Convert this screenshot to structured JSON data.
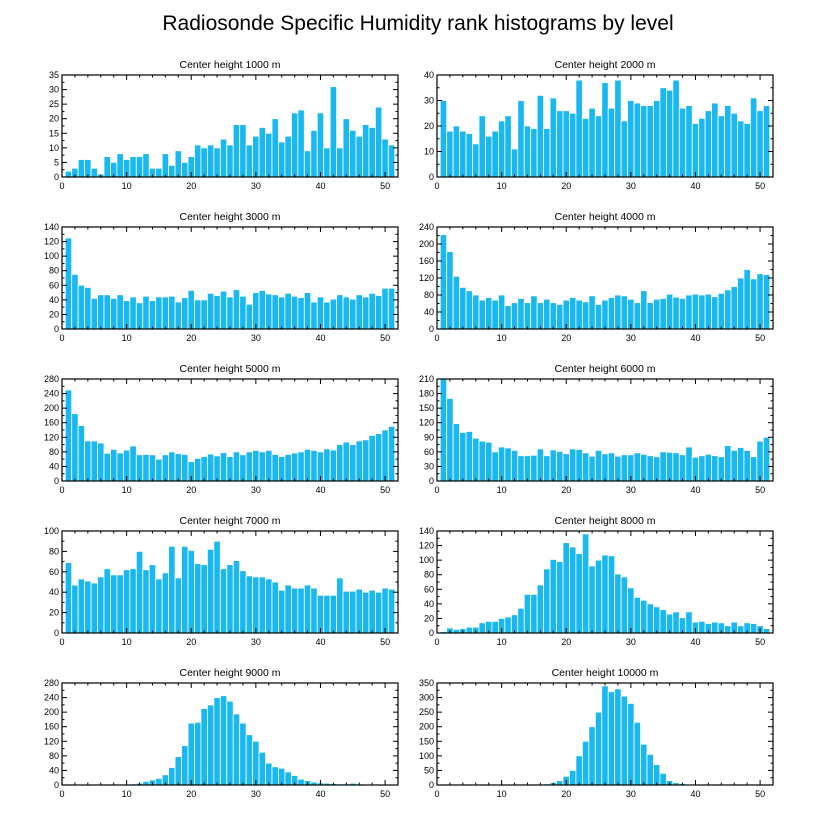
{
  "title": "Radiosonde Specific Humidity rank histograms by level",
  "colors": {
    "bar": "#1ab8f0",
    "frame": "#000000"
  },
  "chart_data": [
    {
      "type": "bar",
      "title": "Center height 1000 m",
      "xlim": [
        0,
        52
      ],
      "ylim": [
        0,
        35
      ],
      "xticks": [
        0,
        10,
        20,
        30,
        40,
        50
      ],
      "yticks": [
        0,
        5,
        10,
        15,
        20,
        25,
        30,
        35
      ],
      "values": [
        2,
        3,
        6,
        6,
        3,
        1,
        7,
        5,
        8,
        6,
        7,
        7,
        8,
        3,
        3,
        8,
        4,
        9,
        5,
        7,
        11,
        10,
        11,
        10,
        13,
        11,
        18,
        18,
        11,
        14,
        17,
        15,
        20,
        12,
        14,
        22,
        23,
        9,
        16,
        22,
        10,
        31,
        10,
        20,
        16,
        14,
        18,
        17,
        24,
        13,
        11
      ]
    },
    {
      "type": "bar",
      "title": "Center height 2000 m",
      "xlim": [
        0,
        52
      ],
      "ylim": [
        0,
        40
      ],
      "xticks": [
        0,
        10,
        20,
        30,
        40,
        50
      ],
      "yticks": [
        0,
        10,
        20,
        30,
        40
      ],
      "values": [
        30,
        18,
        20,
        18,
        17,
        13,
        24,
        16,
        18,
        22,
        24,
        11,
        30,
        20,
        19,
        32,
        19,
        31,
        26,
        26,
        25,
        38,
        23,
        27,
        24,
        37,
        27,
        38,
        22,
        30,
        29,
        28,
        28,
        30,
        35,
        34,
        38,
        27,
        28,
        21,
        23,
        26,
        29,
        24,
        28,
        25,
        22,
        21,
        31,
        26,
        28
      ]
    },
    {
      "type": "bar",
      "title": "Center height 3000 m",
      "xlim": [
        0,
        52
      ],
      "ylim": [
        0,
        140
      ],
      "xticks": [
        0,
        10,
        20,
        30,
        40,
        50
      ],
      "yticks": [
        0,
        20,
        40,
        60,
        80,
        100,
        120,
        140
      ],
      "values": [
        125,
        75,
        60,
        57,
        42,
        47,
        47,
        42,
        47,
        39,
        44,
        36,
        45,
        39,
        44,
        44,
        45,
        37,
        43,
        53,
        40,
        40,
        49,
        46,
        52,
        44,
        54,
        45,
        34,
        50,
        53,
        48,
        47,
        44,
        49,
        45,
        43,
        50,
        37,
        44,
        37,
        41,
        47,
        44,
        41,
        47,
        44,
        49,
        46,
        56,
        56
      ]
    },
    {
      "type": "bar",
      "title": "Center height 4000 m",
      "xlim": [
        0,
        52
      ],
      "ylim": [
        0,
        240
      ],
      "xticks": [
        0,
        10,
        20,
        30,
        40,
        50
      ],
      "yticks": [
        0,
        40,
        80,
        120,
        160,
        200,
        240
      ],
      "values": [
        222,
        182,
        124,
        98,
        90,
        80,
        68,
        74,
        68,
        80,
        55,
        62,
        72,
        62,
        78,
        62,
        70,
        62,
        58,
        68,
        74,
        68,
        64,
        78,
        58,
        68,
        74,
        80,
        78,
        70,
        62,
        90,
        62,
        70,
        72,
        82,
        75,
        72,
        80,
        82,
        80,
        82,
        76,
        84,
        92,
        100,
        120,
        140,
        118,
        130,
        128
      ]
    },
    {
      "type": "bar",
      "title": "Center height 5000 m",
      "xlim": [
        0,
        52
      ],
      "ylim": [
        0,
        280
      ],
      "xticks": [
        0,
        10,
        20,
        30,
        40,
        50
      ],
      "yticks": [
        0,
        40,
        80,
        120,
        160,
        200,
        240,
        280
      ],
      "values": [
        250,
        185,
        152,
        110,
        110,
        104,
        76,
        87,
        77,
        85,
        96,
        72,
        73,
        72,
        60,
        72,
        80,
        75,
        73,
        53,
        62,
        67,
        74,
        69,
        78,
        67,
        80,
        72,
        80,
        84,
        80,
        84,
        73,
        67,
        73,
        77,
        80,
        87,
        84,
        80,
        88,
        85,
        100,
        107,
        100,
        110,
        113,
        125,
        130,
        140,
        150
      ]
    },
    {
      "type": "bar",
      "title": "Center height 6000 m",
      "xlim": [
        0,
        52
      ],
      "ylim": [
        0,
        210
      ],
      "xticks": [
        0,
        10,
        20,
        30,
        40,
        50
      ],
      "yticks": [
        0,
        30,
        60,
        90,
        120,
        150,
        180,
        210
      ],
      "values": [
        210,
        170,
        118,
        100,
        102,
        88,
        82,
        80,
        60,
        70,
        68,
        63,
        52,
        52,
        53,
        66,
        52,
        64,
        61,
        56,
        66,
        65,
        58,
        51,
        63,
        56,
        58,
        51,
        54,
        54,
        58,
        55,
        52,
        50,
        60,
        59,
        58,
        54,
        70,
        49,
        52,
        55,
        52,
        50,
        73,
        63,
        69,
        63,
        50,
        82,
        90
      ]
    },
    {
      "type": "bar",
      "title": "Center height 7000 m",
      "xlim": [
        0,
        52
      ],
      "ylim": [
        0,
        100
      ],
      "xticks": [
        0,
        10,
        20,
        30,
        40,
        50
      ],
      "yticks": [
        0,
        20,
        40,
        60,
        80,
        100
      ],
      "values": [
        69,
        47,
        53,
        51,
        49,
        55,
        63,
        57,
        57,
        62,
        63,
        80,
        62,
        67,
        53,
        59,
        85,
        54,
        85,
        81,
        68,
        67,
        82,
        90,
        63,
        67,
        71,
        61,
        56,
        55,
        55,
        53,
        50,
        42,
        47,
        44,
        44,
        47,
        44,
        37,
        37,
        37,
        54,
        41,
        41,
        43,
        40,
        42,
        40,
        44,
        43
      ]
    },
    {
      "type": "bar",
      "title": "Center height 8000 m",
      "xlim": [
        0,
        52
      ],
      "ylim": [
        0,
        140
      ],
      "xticks": [
        0,
        10,
        20,
        30,
        40,
        50
      ],
      "yticks": [
        0,
        20,
        40,
        60,
        80,
        100,
        120,
        140
      ],
      "values": [
        2,
        7,
        5,
        6,
        8,
        8,
        14,
        16,
        16,
        20,
        22,
        25,
        34,
        53,
        53,
        66,
        88,
        101,
        98,
        124,
        118,
        109,
        136,
        92,
        100,
        107,
        106,
        81,
        77,
        62,
        49,
        45,
        40,
        36,
        32,
        26,
        29,
        21,
        29,
        15,
        16,
        13,
        15,
        14,
        10,
        15,
        10,
        14,
        13,
        10,
        6
      ]
    },
    {
      "type": "bar",
      "title": "Center height 9000 m",
      "xlim": [
        0,
        52
      ],
      "ylim": [
        0,
        280
      ],
      "xticks": [
        0,
        10,
        20,
        30,
        40,
        50
      ],
      "yticks": [
        0,
        40,
        80,
        120,
        160,
        200,
        240,
        280
      ],
      "values": [
        0,
        0,
        0,
        1,
        1,
        1,
        1,
        1,
        2,
        2,
        3,
        5,
        10,
        14,
        18,
        28,
        48,
        78,
        108,
        170,
        172,
        210,
        220,
        240,
        245,
        230,
        195,
        170,
        138,
        120,
        90,
        60,
        50,
        46,
        36,
        26,
        16,
        12,
        8,
        6,
        5,
        4,
        3,
        3,
        5,
        3,
        2,
        2,
        1,
        1,
        0
      ]
    },
    {
      "type": "bar",
      "title": "Center height 10000 m",
      "xlim": [
        0,
        52
      ],
      "ylim": [
        0,
        350
      ],
      "xticks": [
        0,
        10,
        20,
        30,
        40,
        50
      ],
      "yticks": [
        0,
        50,
        100,
        150,
        200,
        250,
        300,
        350
      ],
      "values": [
        0,
        0,
        0,
        0,
        0,
        0,
        0,
        0,
        0,
        0,
        0,
        0,
        0,
        0,
        1,
        2,
        4,
        8,
        15,
        30,
        50,
        100,
        150,
        200,
        250,
        340,
        320,
        330,
        305,
        280,
        215,
        140,
        105,
        70,
        40,
        15,
        8,
        5,
        3,
        2,
        2,
        1,
        1,
        1,
        1,
        1,
        1,
        1,
        1,
        1,
        0
      ]
    }
  ]
}
